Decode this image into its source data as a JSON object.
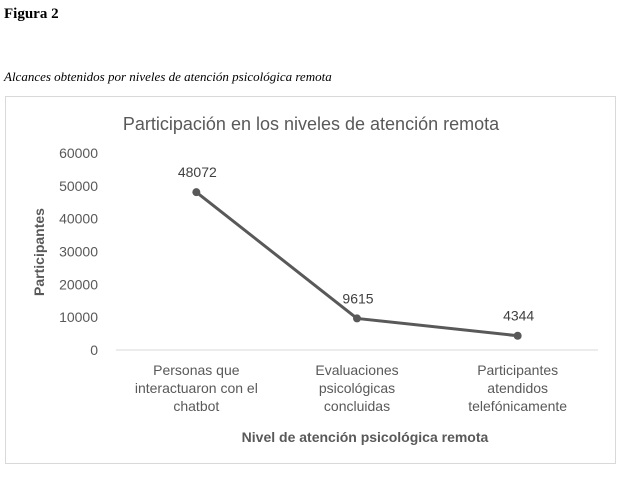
{
  "figure": {
    "label": "Figura 2",
    "caption": "Alcances obtenidos por niveles de atención psicológica remota"
  },
  "chart_data": {
    "type": "line",
    "title": "Participación en los niveles de atención remota",
    "xlabel": "Nivel de atención psicológica remota",
    "ylabel": "Participantes",
    "categories": [
      [
        "Personas que",
        "interactuaron con el",
        "chatbot"
      ],
      [
        "Evaluaciones",
        "psicológicas",
        "concluidas"
      ],
      [
        "Participantes",
        "atendidos",
        "telefónicamente"
      ]
    ],
    "series": [
      {
        "values": [
          48072,
          9615,
          4344
        ],
        "color": "#595959"
      }
    ],
    "data_labels": [
      "48072",
      "9615",
      "4344"
    ],
    "ylim": [
      0,
      60000
    ],
    "yticks": [
      0,
      10000,
      20000,
      30000,
      40000,
      50000,
      60000
    ],
    "grid": false,
    "legend": "none"
  }
}
